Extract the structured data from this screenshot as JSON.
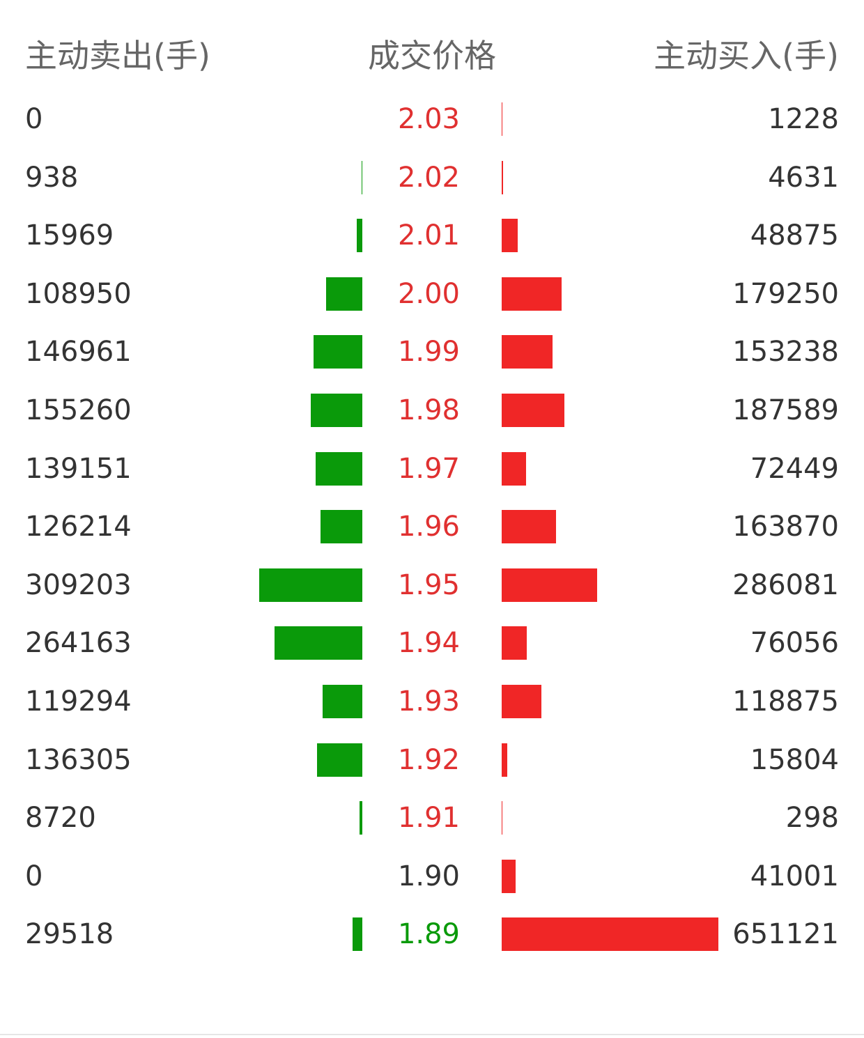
{
  "header": {
    "sell_label": "主动卖出(手)",
    "price_label": "成交价格",
    "buy_label": "主动买入(手)"
  },
  "colors": {
    "sell_bar": "#0a9a0a",
    "buy_bar": "#f02626",
    "price_up": "#e03030",
    "price_flat": "#333333",
    "price_down": "#0a9a0a"
  },
  "rows": [
    {
      "sell": "0",
      "price": "2.03",
      "buy": "1228",
      "price_color": "up"
    },
    {
      "sell": "938",
      "price": "2.02",
      "buy": "4631",
      "price_color": "up"
    },
    {
      "sell": "15969",
      "price": "2.01",
      "buy": "48875",
      "price_color": "up"
    },
    {
      "sell": "108950",
      "price": "2.00",
      "buy": "179250",
      "price_color": "up"
    },
    {
      "sell": "146961",
      "price": "1.99",
      "buy": "153238",
      "price_color": "up"
    },
    {
      "sell": "155260",
      "price": "1.98",
      "buy": "187589",
      "price_color": "up"
    },
    {
      "sell": "139151",
      "price": "1.97",
      "buy": "72449",
      "price_color": "up"
    },
    {
      "sell": "126214",
      "price": "1.96",
      "buy": "163870",
      "price_color": "up"
    },
    {
      "sell": "309203",
      "price": "1.95",
      "buy": "286081",
      "price_color": "up"
    },
    {
      "sell": "264163",
      "price": "1.94",
      "buy": "76056",
      "price_color": "up"
    },
    {
      "sell": "119294",
      "price": "1.93",
      "buy": "118875",
      "price_color": "up"
    },
    {
      "sell": "136305",
      "price": "1.92",
      "buy": "15804",
      "price_color": "up"
    },
    {
      "sell": "8720",
      "price": "1.91",
      "buy": "298",
      "price_color": "up"
    },
    {
      "sell": "0",
      "price": "1.90",
      "buy": "41001",
      "price_color": "flat"
    },
    {
      "sell": "29518",
      "price": "1.89",
      "buy": "651121",
      "price_color": "down"
    }
  ]
}
